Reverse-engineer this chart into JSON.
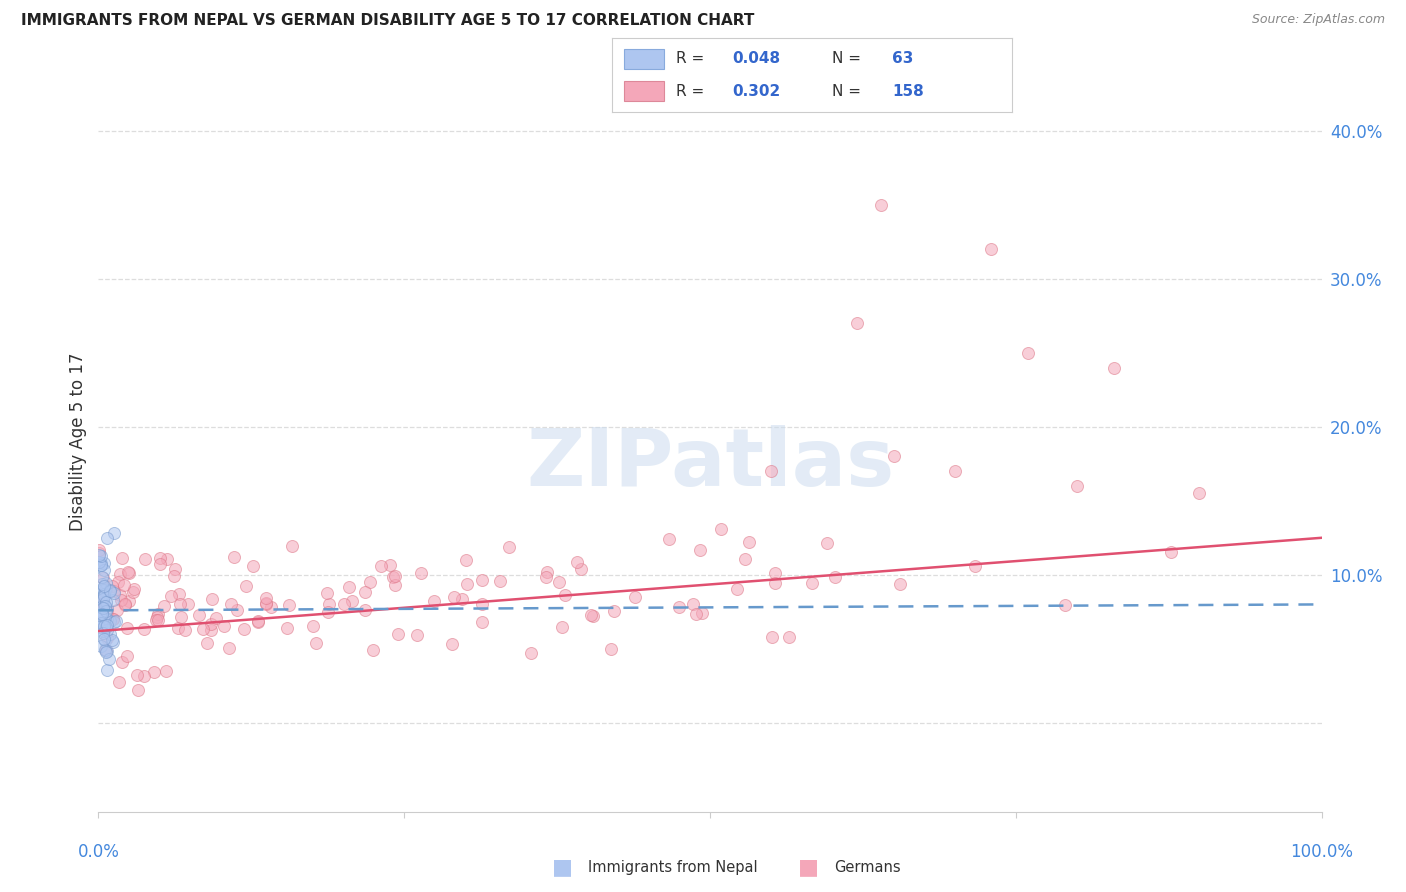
{
  "title": "IMMIGRANTS FROM NEPAL VS GERMAN DISABILITY AGE 5 TO 17 CORRELATION CHART",
  "source": "Source: ZipAtlas.com",
  "ylabel": "Disability Age 5 to 17",
  "ytick_labels": [
    "",
    "10.0%",
    "20.0%",
    "30.0%",
    "40.0%"
  ],
  "ytick_values": [
    0.0,
    0.1,
    0.2,
    0.3,
    0.4
  ],
  "xlim": [
    0.0,
    1.0
  ],
  "ylim": [
    -0.06,
    0.44
  ],
  "legend_entries": [
    {
      "color": "#aec6f0",
      "border": "#88aadd",
      "R": "0.048",
      "N": "63",
      "label": "Immigrants from Nepal"
    },
    {
      "color": "#f4a7b9",
      "border": "#dd8899",
      "R": "0.302",
      "N": "158",
      "label": "Germans"
    }
  ],
  "watermark": "ZIPatlas",
  "nepal_scatter_face": "#aec6f0",
  "nepal_scatter_edge": "#7799cc",
  "german_scatter_face": "#f4a7b9",
  "german_scatter_edge": "#dd7788",
  "nepal_line_color": "#6699cc",
  "german_line_color": "#e05070",
  "grid_color": "#dddddd",
  "grid_linestyle": "--",
  "background_color": "#ffffff",
  "title_color": "#222222",
  "source_color": "#888888",
  "tick_color": "#4488dd",
  "ylabel_color": "#333333"
}
